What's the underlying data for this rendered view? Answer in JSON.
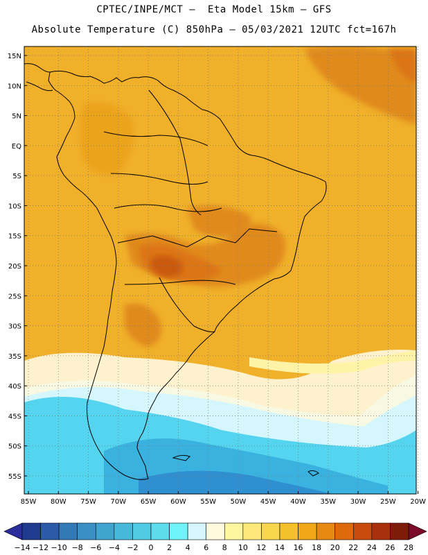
{
  "header": {
    "line1": "CPTEC/INPE/MCT –  Eta Model 15km – GFS",
    "line2": "Absolute Temperature (C) 850hPa – 05/03/2021 12UTC fct=167h"
  },
  "map": {
    "lat_labels": [
      "15N",
      "10N",
      "5N",
      "EQ",
      "5S",
      "10S",
      "15S",
      "20S",
      "25S",
      "30S",
      "35S",
      "40S",
      "45S",
      "50S",
      "55S"
    ],
    "lon_labels": [
      "85W",
      "80W",
      "75W",
      "70W",
      "65W",
      "60W",
      "55W",
      "50W",
      "45W",
      "40W",
      "35W",
      "30W",
      "25W",
      "20W"
    ],
    "lat_range": [
      -58,
      16.5
    ],
    "lon_range": [
      -85.7,
      -20.3
    ],
    "grid": "dotted",
    "variable": "temperature 850hPa"
  },
  "colorbar": {
    "labels": [
      "-14",
      "-12",
      "-10",
      "-8",
      "-6",
      "-4",
      "-2",
      "0",
      "2",
      "4",
      "6",
      "8",
      "10",
      "12",
      "14",
      "16",
      "18",
      "20",
      "22",
      "24",
      "26",
      "28"
    ],
    "colors": [
      "#1f3b8f",
      "#2a5aa8",
      "#3379b8",
      "#3a8fc4",
      "#40a4cf",
      "#46b8da",
      "#4fcbe4",
      "#5cdcec",
      "#6ff2fa",
      "#d4f6fc",
      "#fff9e0",
      "#fff7a0",
      "#fde87a",
      "#f8d64e",
      "#f4c02c",
      "#f0a818",
      "#e88a12",
      "#de6a0e",
      "#c84a0c",
      "#a8300c",
      "#7e1c0a"
    ],
    "end_low": "#2a2d9a",
    "end_high": "#7a0c2a"
  },
  "palette": {
    "ocean_cold_1": "#2f8fd0",
    "ocean_cold_2": "#3ab2e0",
    "ocean_cold_3": "#54d4ee",
    "ocean_cold_4": "#a8eefa",
    "ocean_cool": "#d4f6fc",
    "transition": "#fff9e0",
    "yellow": "#fff3a8",
    "base_warm": "#f0b02a",
    "warm": "#eca31c",
    "hot": "#e08a1c",
    "hotter": "#dc7418",
    "hottest": "#c95a10",
    "coast": "#000000"
  }
}
